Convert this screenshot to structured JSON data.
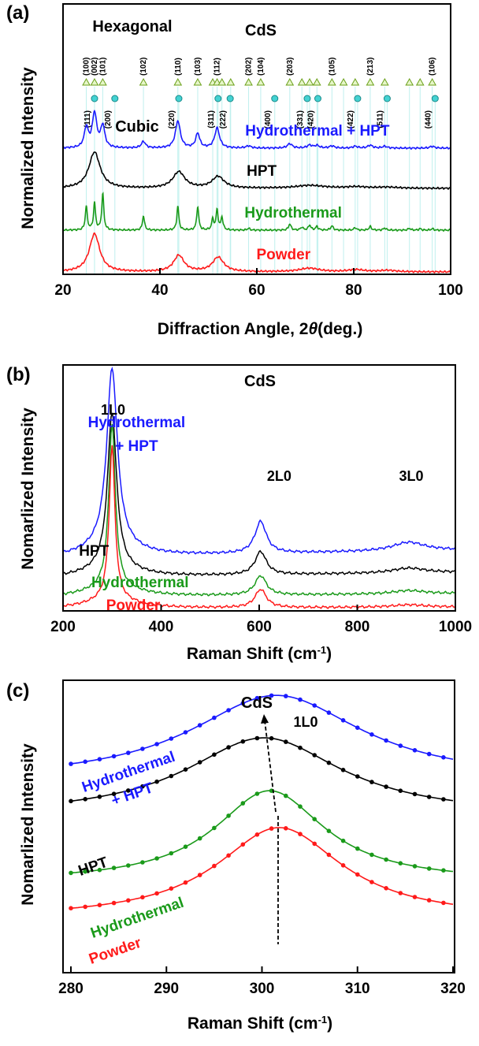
{
  "colors": {
    "hydro_hpt": "#1a1aff",
    "hpt": "#000000",
    "hydro": "#1a9a1a",
    "powder": "#ff1a1a",
    "hexagonal": "#7fcc1f",
    "cubic": "#31c9c9",
    "refline": "#bff0ee"
  },
  "chart_data": [
    {
      "type": "line",
      "panel_label": "(a)",
      "title": "CdS",
      "xlabel": "Diffraction Angle, 2",
      "xlabel_symbol": "θ",
      "xlabel_unit": "(deg.)",
      "ylabel": "Normalized Intensity",
      "xlim": [
        20,
        100
      ],
      "xticks": [
        20,
        40,
        60,
        80,
        100
      ],
      "legend_labels": {
        "hexagonal": "Hexagonal",
        "cubic": "Cubic"
      },
      "hexagonal_peaks": [
        {
          "pos": 24.8,
          "hkl": "(100)"
        },
        {
          "pos": 26.5,
          "hkl": "(002)"
        },
        {
          "pos": 28.2,
          "hkl": "(101)"
        },
        {
          "pos": 36.6,
          "hkl": "(102)"
        },
        {
          "pos": 43.7,
          "hkl": "(110)"
        },
        {
          "pos": 47.8,
          "hkl": "(103)"
        },
        {
          "pos": 50.9,
          "hkl": ""
        },
        {
          "pos": 51.8,
          "hkl": "(112)"
        },
        {
          "pos": 52.8,
          "hkl": ""
        },
        {
          "pos": 54.6,
          "hkl": ""
        },
        {
          "pos": 58.3,
          "hkl": "(202)"
        },
        {
          "pos": 60.8,
          "hkl": "(104)"
        },
        {
          "pos": 66.8,
          "hkl": "(203)"
        },
        {
          "pos": 69.3,
          "hkl": ""
        },
        {
          "pos": 70.9,
          "hkl": ""
        },
        {
          "pos": 72.4,
          "hkl": ""
        },
        {
          "pos": 75.5,
          "hkl": "(105)"
        },
        {
          "pos": 77.9,
          "hkl": ""
        },
        {
          "pos": 80.3,
          "hkl": ""
        },
        {
          "pos": 83.4,
          "hkl": "(213)"
        },
        {
          "pos": 86.4,
          "hkl": ""
        },
        {
          "pos": 91.5,
          "hkl": ""
        },
        {
          "pos": 93.7,
          "hkl": ""
        },
        {
          "pos": 96.2,
          "hkl": "(106)"
        }
      ],
      "cubic_peaks": [
        {
          "pos": 26.5,
          "hkl": "(111)"
        },
        {
          "pos": 30.7,
          "hkl": "(200)"
        },
        {
          "pos": 43.9,
          "hkl": "(220)"
        },
        {
          "pos": 52.0,
          "hkl": "(311)"
        },
        {
          "pos": 54.5,
          "hkl": "(222)"
        },
        {
          "pos": 63.7,
          "hkl": "(400)"
        },
        {
          "pos": 70.4,
          "hkl": "(331)"
        },
        {
          "pos": 72.6,
          "hkl": "(420)"
        },
        {
          "pos": 80.8,
          "hkl": "(422)"
        },
        {
          "pos": 86.9,
          "hkl": "(511)"
        },
        {
          "pos": 96.8,
          "hkl": "(440)"
        }
      ],
      "series": [
        {
          "name": "Hydrothermal + HPT",
          "color_key": "hydro_hpt",
          "offset": 3,
          "label_x": 72.5,
          "peaks": [
            [
              24.8,
              0.55,
              0.5
            ],
            [
              26.5,
              0.95,
              0.55
            ],
            [
              28.2,
              0.6,
              0.5
            ],
            [
              36.6,
              0.18,
              0.5
            ],
            [
              43.7,
              0.75,
              0.6
            ],
            [
              47.8,
              0.4,
              0.5
            ],
            [
              51.8,
              0.55,
              0.6
            ],
            [
              58.3,
              0.06,
              0.6
            ],
            [
              66.8,
              0.12,
              0.6
            ],
            [
              70.9,
              0.08,
              0.6
            ],
            [
              72.4,
              0.07,
              0.6
            ],
            [
              75.5,
              0.06,
              0.6
            ],
            [
              80.3,
              0.05,
              0.6
            ],
            [
              83.4,
              0.08,
              0.6
            ],
            [
              86.4,
              0.05,
              0.6
            ],
            [
              96.2,
              0.05,
              0.6
            ]
          ]
        },
        {
          "name": "HPT",
          "color_key": "hpt",
          "offset": 2,
          "label_x": 61,
          "peaks": [
            [
              26.5,
              1.0,
              1.4
            ],
            [
              43.9,
              0.45,
              1.5
            ],
            [
              52.0,
              0.32,
              1.5
            ],
            [
              71.0,
              0.08,
              3.5
            ],
            [
              80.5,
              0.04,
              2.5
            ],
            [
              87.0,
              0.03,
              2.5
            ]
          ]
        },
        {
          "name": "Hydrothermal",
          "color_key": "hydro",
          "offset": 1,
          "label_x": 67.5,
          "peaks": [
            [
              24.8,
              0.65,
              0.25
            ],
            [
              26.5,
              0.75,
              0.25
            ],
            [
              28.2,
              1.0,
              0.25
            ],
            [
              36.6,
              0.4,
              0.25
            ],
            [
              43.7,
              0.65,
              0.25
            ],
            [
              47.8,
              0.65,
              0.25
            ],
            [
              50.9,
              0.3,
              0.25
            ],
            [
              51.8,
              0.55,
              0.25
            ],
            [
              52.8,
              0.35,
              0.25
            ],
            [
              58.3,
              0.05,
              0.3
            ],
            [
              66.8,
              0.17,
              0.3
            ],
            [
              69.3,
              0.08,
              0.3
            ],
            [
              70.9,
              0.14,
              0.3
            ],
            [
              72.4,
              0.1,
              0.3
            ],
            [
              75.5,
              0.12,
              0.3
            ],
            [
              80.3,
              0.07,
              0.3
            ],
            [
              83.4,
              0.1,
              0.3
            ],
            [
              86.4,
              0.06,
              0.3
            ],
            [
              91.5,
              0.05,
              0.3
            ],
            [
              93.7,
              0.04,
              0.3
            ],
            [
              96.2,
              0.04,
              0.3
            ]
          ]
        },
        {
          "name": "Powder",
          "color_key": "powder",
          "offset": 0,
          "label_x": 65.5,
          "peaks": [
            [
              26.5,
              1.05,
              1.3
            ],
            [
              43.9,
              0.45,
              1.3
            ],
            [
              52.0,
              0.4,
              1.4
            ],
            [
              70.8,
              0.1,
              2.5
            ],
            [
              80.5,
              0.06,
              2
            ],
            [
              87.0,
              0.04,
              2
            ]
          ]
        }
      ]
    },
    {
      "type": "line",
      "panel_label": "(b)",
      "title": "CdS",
      "xlabel": "Raman Shift (cm",
      "xlabel_sup": "-1",
      "xlabel_close": ")",
      "ylabel": "Nomarlized Intensity",
      "xlim": [
        200,
        1000
      ],
      "xticks": [
        200,
        400,
        600,
        800,
        1000
      ],
      "annotations": [
        {
          "text": "1L0",
          "x": 302
        },
        {
          "text": "2L0",
          "x": 615
        },
        {
          "text": "3L0",
          "x": 910
        }
      ],
      "series": [
        {
          "name_lines": [
            "Hydrothermal",
            "+ HPT"
          ],
          "color_key": "hydro_hpt",
          "base": 0.55,
          "amp": 1.85,
          "w1": 13,
          "a2": 0.33,
          "a3": 0.09,
          "slope": 0.08,
          "label_x": 350
        },
        {
          "name_lines": [
            "HPT"
          ],
          "color_key": "hpt",
          "base": 0.34,
          "amp": 1.62,
          "w1": 11,
          "a2": 0.24,
          "a3": 0.05,
          "slope": 0.06,
          "label_x": 263
        },
        {
          "name_lines": [
            "Hydrothermal"
          ],
          "color_key": "hydro",
          "base": 0.14,
          "amp": 1.7,
          "w1": 8,
          "a2": 0.2,
          "a3": 0.035,
          "slope": 0.04,
          "label_x": 357
        },
        {
          "name_lines": [
            "Powder"
          ],
          "color_key": "powder",
          "base": 0.02,
          "amp": 1.6,
          "w1": 7,
          "a2": 0.19,
          "a3": 0.025,
          "slope": 0.02,
          "label_x": 343
        }
      ]
    },
    {
      "type": "line",
      "panel_label": "(c)",
      "title": "CdS",
      "peak_label": "1L0",
      "xlabel": "Raman Shift (cm",
      "xlabel_sup": "-1",
      "xlabel_close": ")",
      "ylabel": "Nomarlized Intensity",
      "xlim": [
        280,
        320
      ],
      "xticks": [
        280,
        290,
        300,
        310,
        320
      ],
      "series": [
        {
          "name_lines": [
            "Hydrothermal",
            "+ HPT"
          ],
          "color_key": "hydro_hpt",
          "center": 301.5,
          "width": 11,
          "base": 0.25,
          "amp": 0.68,
          "offset": 0.62
        },
        {
          "name_lines": [
            "HPT"
          ],
          "color_key": "hpt",
          "center": 300.2,
          "width": 10,
          "base": 0.28,
          "amp": 0.62,
          "offset": 0.42
        },
        {
          "name_lines": [
            "Hydrothermal"
          ],
          "color_key": "hydro",
          "center": 300.8,
          "width": 7,
          "base": 0.22,
          "amp": 0.72,
          "offset": 0.16
        },
        {
          "name_lines": [
            "Powder"
          ],
          "color_key": "powder",
          "center": 301.8,
          "width": 8,
          "base": 0.2,
          "amp": 0.72,
          "offset": 0.0
        }
      ]
    }
  ]
}
